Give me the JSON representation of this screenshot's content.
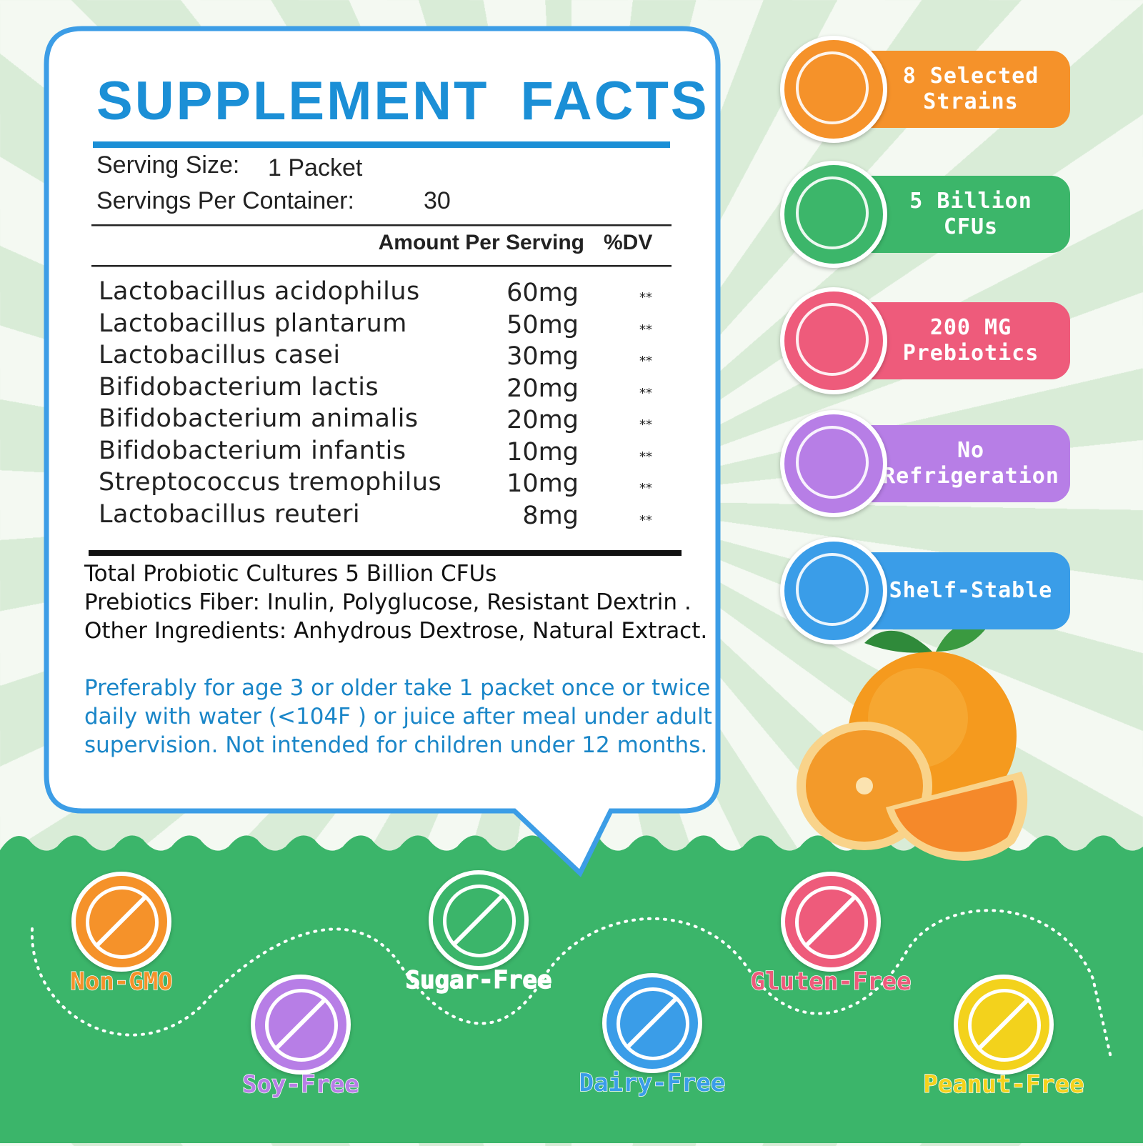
{
  "title": "SUPPLEMENT FACTS",
  "serving": {
    "size_label": "Serving Size:",
    "size_value": "1 Packet",
    "per_container_label": "Servings Per Container:",
    "per_container_value": "30"
  },
  "table": {
    "headers": [
      "Amount Per Serving",
      "%DV"
    ],
    "rows": [
      [
        "Lactobacillus acidophilus",
        "60mg",
        "**"
      ],
      [
        "Lactobacillus plantarum",
        "50mg",
        "**"
      ],
      [
        "Lactobacillus casei",
        "30mg",
        "**"
      ],
      [
        "Bifidobacterium lactis",
        "20mg",
        "**"
      ],
      [
        "Bifidobacterium animalis",
        "20mg",
        "**"
      ],
      [
        "Bifidobacterium infantis",
        "10mg",
        "**"
      ],
      [
        "Streptococcus tremophilus",
        "10mg",
        "**"
      ],
      [
        "Lactobacillus reuteri",
        "8mg",
        "**"
      ]
    ]
  },
  "notes": [
    "Total Probiotic Cultures 5 Billion CFUs",
    "Prebiotics Fiber: Inulin, Polyglucose, Resistant Dextrin .",
    "Other Ingredients: Anhydrous Dextrose, Natural  Extract."
  ],
  "directions": "Preferably for age 3 or older take 1 packet once or twice daily with water (<104F ) or juice after meal under adult supervision. Not intended for children under 12 months.",
  "features": [
    "8 Selected Strains",
    "5 Billion CFUs",
    "200 MG Prebiotics",
    "No Refrigeration",
    "Shelf-Stable"
  ],
  "badges": [
    "Non-GMO",
    "Soy-Free",
    "Sugar-Free",
    "Dairy-Free",
    "Gluten-Free",
    "Peanut-Free"
  ]
}
